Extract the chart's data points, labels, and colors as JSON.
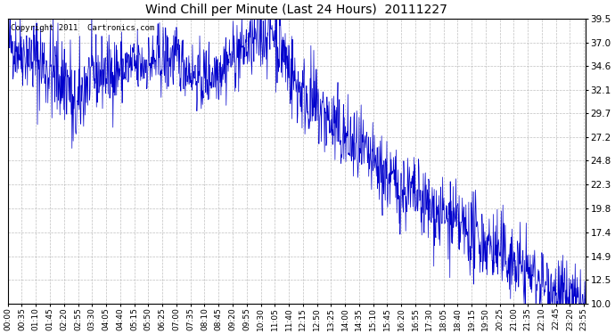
{
  "title": "Wind Chill per Minute (Last 24 Hours)  20111227",
  "copyright_text": "Copyright 2011  Cartronics.com",
  "line_color": "#0000cc",
  "background_color": "#ffffff",
  "grid_color": "#b0b0b0",
  "ylim": [
    10.0,
    39.5
  ],
  "yticks": [
    10.0,
    12.5,
    14.9,
    17.4,
    19.8,
    22.3,
    24.8,
    27.2,
    29.7,
    32.1,
    34.6,
    37.0,
    39.5
  ],
  "xtick_step": 35,
  "total_minutes": 1440,
  "seed": 42
}
